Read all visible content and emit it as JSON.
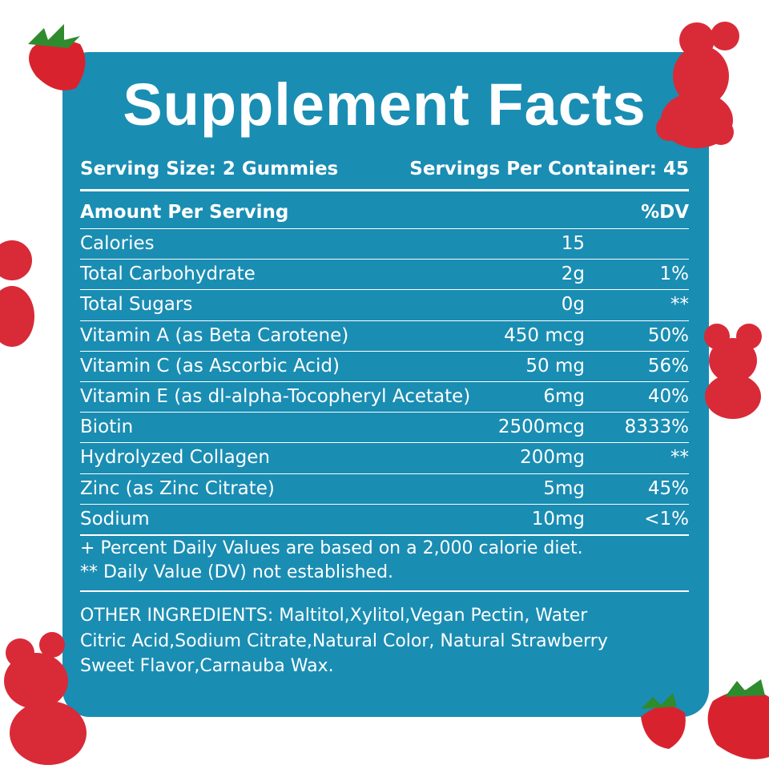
{
  "header": {
    "title": "Supplement Facts"
  },
  "serving": {
    "size": "Serving Size: 2 Gummies",
    "per_container": "Servings Per Container: 45"
  },
  "table": {
    "header": [
      "Amount Per Serving",
      "%DV"
    ],
    "rows": [
      [
        "Calories",
        "15"
      ],
      [
        "Total Carbohydrate",
        "2g",
        "1%"
      ],
      [
        "Total Sugars",
        "0g",
        "**"
      ],
      [
        "Vitamin A (as Beta Carotene)",
        "450 mcg",
        "50%"
      ],
      [
        "Vitamin C (as Ascorbic Acid)",
        "50 mg",
        "56%"
      ],
      [
        "Vitamin E (as dl-alpha-Tocopheryl Acetate)",
        "6mg",
        "40%"
      ],
      [
        "Biotin",
        "2500mcg",
        "8333%"
      ],
      [
        "Hydrolyzed Collagen",
        "200mg",
        "**"
      ],
      [
        "Zinc (as Zinc Citrate)",
        "5mg",
        "45%"
      ],
      [
        "Sodium",
        "10mg",
        "<1%"
      ]
    ]
  },
  "footnotes": [
    "+ Percent Daily Values are based on a 2,000 calorie diet.",
    "** Daily Value (DV) not established."
  ],
  "other_ingredients": [
    "OTHER INGREDIENTS: Maltitol,Xylitol,Vegan Pectin, Water",
    "Citric Acid,Sodium Citrate,Natural Color, Natural Strawberry",
    "Sweet Flavor,Carnauba Wax."
  ]
}
